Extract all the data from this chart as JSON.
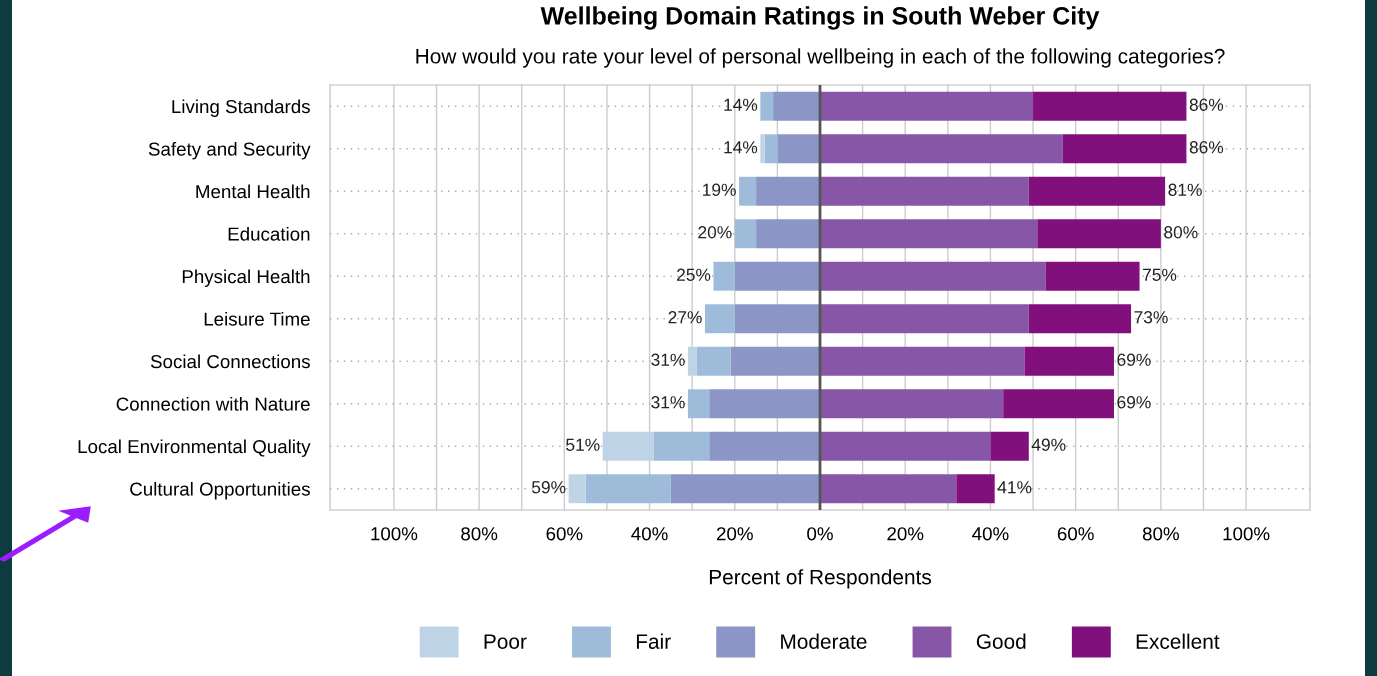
{
  "chart_data": {
    "type": "bar",
    "orientation": "horizontal",
    "stacked": true,
    "title": "Wellbeing Domain Ratings in South Weber City",
    "subtitle": "How would you rate your level of personal wellbeing in each of the following categories?",
    "xlabel": "Percent of Respondents",
    "categories": [
      "Living Standards",
      "Safety and Security",
      "Mental Health",
      "Education",
      "Physical Health",
      "Leisure Time",
      "Social Connections",
      "Connection with Nature",
      "Local Environmental Quality",
      "Cultural Opportunities"
    ],
    "series": [
      {
        "name": "Moderate",
        "color": "#8c96c6",
        "values": [
          -11,
          -10,
          -15,
          -15,
          -20,
          -20,
          -21,
          -26,
          -26,
          -35
        ]
      },
      {
        "name": "Fair",
        "color": "#9ebcda",
        "values": [
          -3,
          -3,
          -4,
          -5,
          -5,
          -7,
          -8,
          -5,
          -13,
          -20
        ]
      },
      {
        "name": "Poor",
        "color": "#bfd3e6",
        "values": [
          0,
          -1,
          0,
          0,
          0,
          0,
          -2,
          0,
          -12,
          -4
        ]
      },
      {
        "name": "Good",
        "color": "#8856a7",
        "values": [
          50,
          57,
          49,
          51,
          53,
          49,
          48,
          43,
          40,
          32
        ]
      },
      {
        "name": "Excellent",
        "color": "#810f7c",
        "values": [
          36,
          29,
          32,
          29,
          22,
          24,
          21,
          26,
          9,
          9
        ]
      }
    ],
    "annotations": [
      {
        "text": "14%",
        "x": -14,
        "y": "Living Standards"
      },
      {
        "text": "86%",
        "x": 86,
        "y": "Living Standards"
      },
      {
        "text": "14%",
        "x": -14,
        "y": "Safety and Security"
      },
      {
        "text": "86%",
        "x": 86,
        "y": "Safety and Security"
      },
      {
        "text": "19%",
        "x": -19,
        "y": "Mental Health"
      },
      {
        "text": "81%",
        "x": 81,
        "y": "Mental Health"
      },
      {
        "text": "20%",
        "x": -20,
        "y": "Education"
      },
      {
        "text": "80%",
        "x": 80,
        "y": "Education"
      },
      {
        "text": "25%",
        "x": -25,
        "y": "Physical Health"
      },
      {
        "text": "75%",
        "x": 75,
        "y": "Physical Health"
      },
      {
        "text": "27%",
        "x": -27,
        "y": "Leisure Time"
      },
      {
        "text": "73%",
        "x": 73,
        "y": "Leisure Time"
      },
      {
        "text": "31%",
        "x": -31,
        "y": "Social Connections"
      },
      {
        "text": "69%",
        "x": 69,
        "y": "Social Connections"
      },
      {
        "text": "31%",
        "x": -31,
        "y": "Connection with Nature"
      },
      {
        "text": "69%",
        "x": 69,
        "y": "Connection with Nature"
      },
      {
        "text": "51%",
        "x": -51,
        "y": "Local Environmental Quality"
      },
      {
        "text": "49%",
        "x": 49,
        "y": "Local Environmental Quality"
      },
      {
        "text": "59%",
        "x": -59,
        "y": "Cultural Opportunities"
      },
      {
        "text": "41%",
        "x": 41,
        "y": "Cultural Opportunities"
      }
    ],
    "xlim": [
      -115,
      115
    ],
    "xticks": [
      {
        "value": -100,
        "label": "100%"
      },
      {
        "value": -90,
        "label": null
      },
      {
        "value": -80,
        "label": "80%"
      },
      {
        "value": -70,
        "label": null
      },
      {
        "value": -60,
        "label": "60%"
      },
      {
        "value": -50,
        "label": null
      },
      {
        "value": -40,
        "label": "40%"
      },
      {
        "value": -30,
        "label": null
      },
      {
        "value": -20,
        "label": "20%"
      },
      {
        "value": -10,
        "label": null
      },
      {
        "value": 0,
        "label": "0%"
      },
      {
        "value": 10,
        "label": null
      },
      {
        "value": 20,
        "label": "20%"
      },
      {
        "value": 30,
        "label": null
      },
      {
        "value": 40,
        "label": "40%"
      },
      {
        "value": 50,
        "label": null
      },
      {
        "value": 60,
        "label": "60%"
      },
      {
        "value": 70,
        "label": null
      },
      {
        "value": 80,
        "label": "80%"
      },
      {
        "value": 90,
        "label": null
      },
      {
        "value": 100,
        "label": "100%"
      }
    ],
    "ref_lines": [
      {
        "axis": "x",
        "value": 0,
        "color": "#555555"
      }
    ],
    "grid": true,
    "legend": "bottom"
  }
}
